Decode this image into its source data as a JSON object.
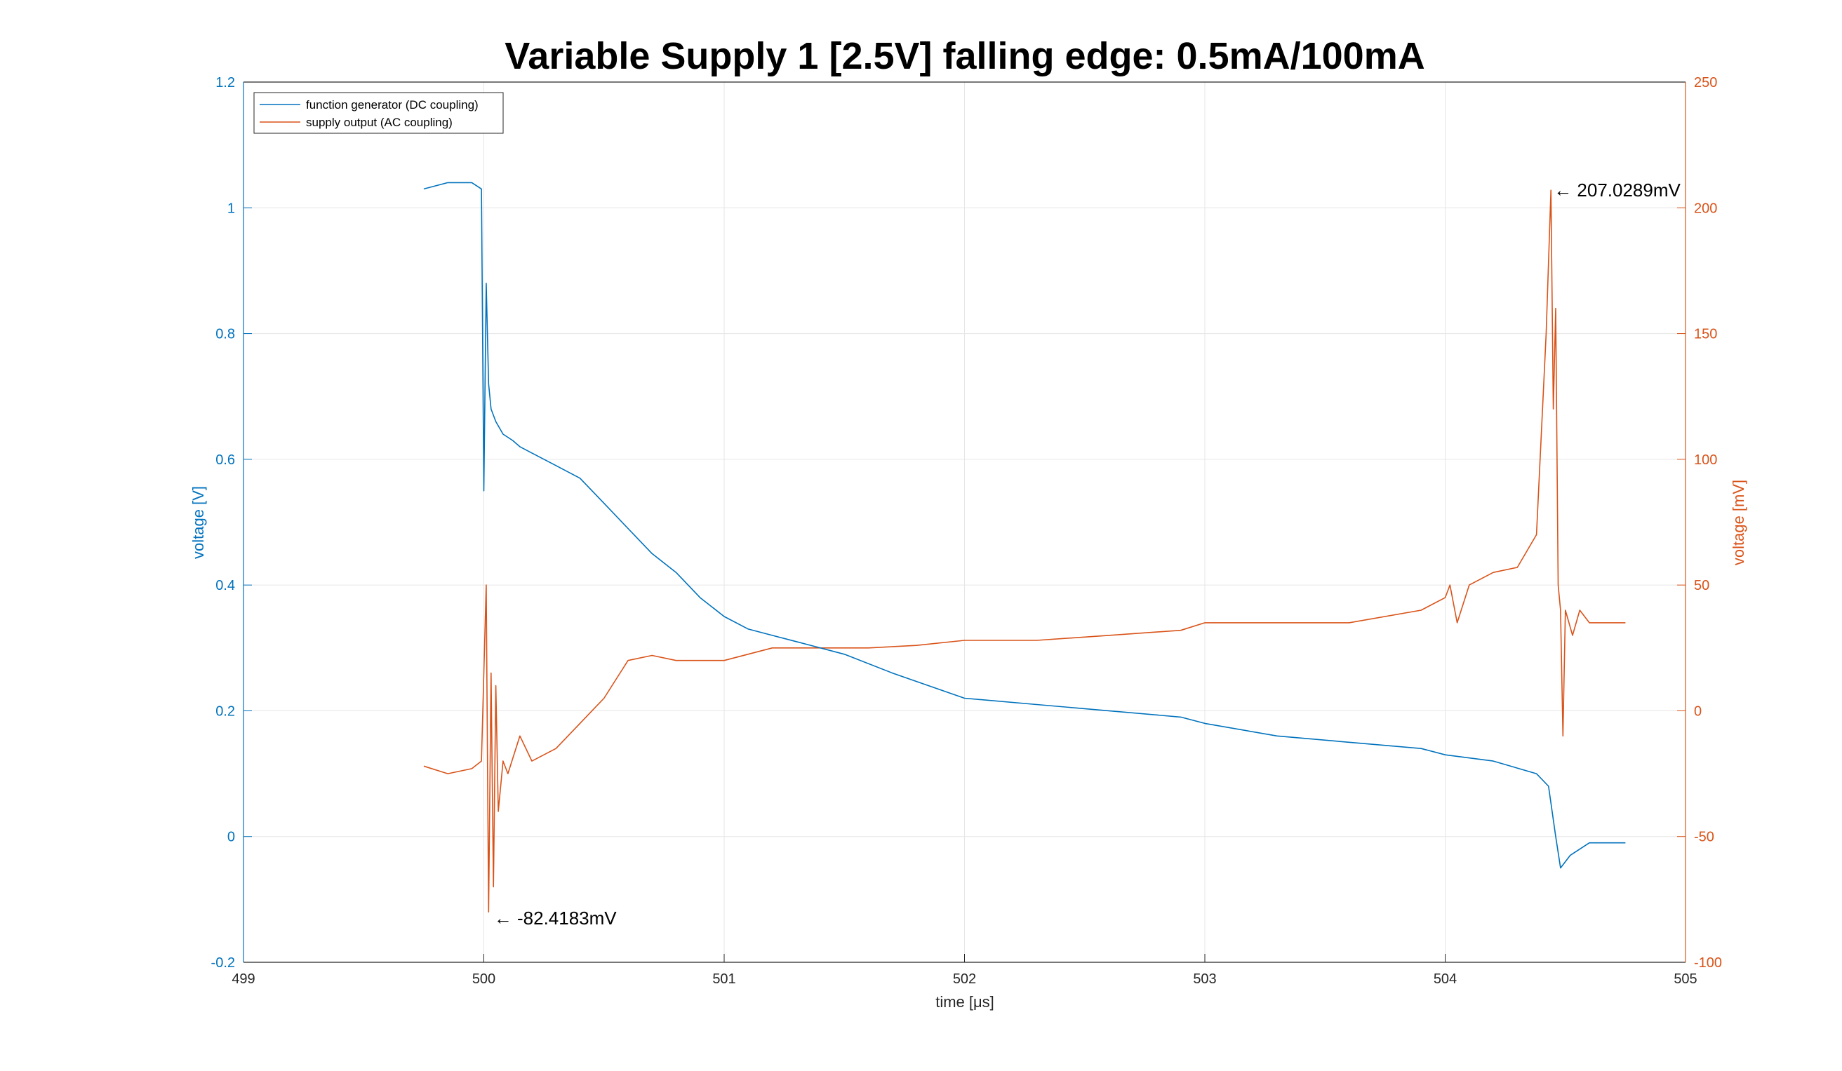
{
  "chart_data": {
    "type": "line",
    "title": "Variable Supply 1 [2.5V] falling edge: 0.5mA/100mA",
    "xlabel": "time [μs]",
    "ylabel_left": "voltage [V]",
    "ylabel_right": "voltage [mV]",
    "xlim": [
      499,
      505
    ],
    "ylim_left": [
      -0.2,
      1.2
    ],
    "ylim_right": [
      -100,
      250
    ],
    "x_ticks": [
      "499",
      "500",
      "501",
      "502",
      "503",
      "504",
      "505"
    ],
    "y_ticks_left": [
      "-0.2",
      "0",
      "0.2",
      "0.4",
      "0.6",
      "0.8",
      "1",
      "1.2"
    ],
    "y_ticks_right": [
      "-100",
      "-50",
      "0",
      "50",
      "100",
      "150",
      "200",
      "250"
    ],
    "grid": true,
    "legend_position": "top-left",
    "colors": {
      "left_axis": "#0072BD",
      "right_axis": "#D95319"
    },
    "series": [
      {
        "name": "function generator (DC coupling)",
        "axis": "left",
        "color": "#0072BD",
        "x": [
          499.75,
          499.85,
          499.95,
          499.99,
          500.0,
          500.01,
          500.02,
          500.03,
          500.05,
          500.08,
          500.12,
          500.15,
          500.2,
          500.3,
          500.4,
          500.5,
          500.6,
          500.7,
          500.8,
          500.9,
          501.0,
          501.1,
          501.2,
          501.3,
          501.5,
          501.7,
          502.0,
          502.3,
          502.6,
          502.9,
          503.0,
          503.3,
          503.6,
          503.9,
          504.0,
          504.2,
          504.38,
          504.43,
          504.46,
          504.48,
          504.52,
          504.6,
          504.75
        ],
        "y": [
          1.03,
          1.04,
          1.04,
          1.03,
          0.55,
          0.88,
          0.72,
          0.68,
          0.66,
          0.64,
          0.63,
          0.62,
          0.61,
          0.59,
          0.57,
          0.53,
          0.49,
          0.45,
          0.42,
          0.38,
          0.35,
          0.33,
          0.32,
          0.31,
          0.29,
          0.26,
          0.22,
          0.21,
          0.2,
          0.19,
          0.18,
          0.16,
          0.15,
          0.14,
          0.13,
          0.12,
          0.1,
          0.08,
          0.0,
          -0.05,
          -0.03,
          -0.01,
          -0.01
        ]
      },
      {
        "name": "supply output (AC coupling)",
        "axis": "right",
        "color": "#D95319",
        "x": [
          499.75,
          499.85,
          499.95,
          499.99,
          500.0,
          500.01,
          500.02,
          500.03,
          500.04,
          500.05,
          500.06,
          500.08,
          500.1,
          500.15,
          500.2,
          500.3,
          500.4,
          500.5,
          500.6,
          500.7,
          500.8,
          501.0,
          501.2,
          501.4,
          501.6,
          501.8,
          502.0,
          502.3,
          502.6,
          502.9,
          503.0,
          503.3,
          503.6,
          503.9,
          504.0,
          504.02,
          504.05,
          504.1,
          504.2,
          504.3,
          504.38,
          504.42,
          504.44,
          504.45,
          504.46,
          504.47,
          504.48,
          504.49,
          504.5,
          504.53,
          504.56,
          504.6,
          504.75
        ],
        "y": [
          -22,
          -25,
          -23,
          -20,
          15,
          50,
          -80,
          15,
          -70,
          10,
          -40,
          -20,
          -25,
          -10,
          -20,
          -15,
          -5,
          5,
          20,
          22,
          20,
          20,
          25,
          25,
          25,
          26,
          28,
          28,
          30,
          32,
          35,
          35,
          35,
          40,
          45,
          50,
          35,
          50,
          55,
          57,
          70,
          150,
          207,
          120,
          160,
          50,
          40,
          -10,
          40,
          30,
          40,
          35,
          35
        ]
      }
    ],
    "annotations": [
      {
        "text": "← 207.0289mV",
        "x": 504.44,
        "y": 207.0289,
        "axis": "right"
      },
      {
        "text": "← -82.4183mV",
        "x": 500.03,
        "y": -82.4183,
        "axis": "right"
      }
    ]
  }
}
